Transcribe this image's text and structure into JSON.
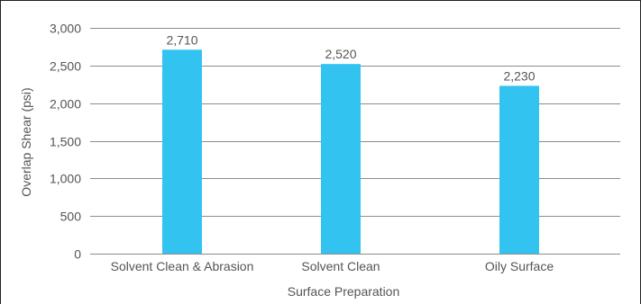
{
  "chart_data": {
    "type": "bar",
    "categories": [
      "Solvent Clean & Abrasion",
      "Solvent Clean",
      "Oily Surface"
    ],
    "values": [
      2710,
      2520,
      2230
    ],
    "value_labels": [
      "2,710",
      "2,520",
      "2,230"
    ],
    "ylabel": "Overlap Shear (psi)",
    "xlabel": "Surface Preparation",
    "ylim": [
      0,
      3000
    ],
    "yticks": [
      0,
      500,
      1000,
      1500,
      2000,
      2500,
      3000
    ],
    "ytick_labels": [
      "0",
      "500",
      "1,000",
      "1,500",
      "2,000",
      "2,500",
      "3,000"
    ],
    "grid": true,
    "legend": "none",
    "colors": {
      "bar": "#33C3F0",
      "grid": "#8C8C8C",
      "text": "#555555",
      "frame": "#222222"
    }
  }
}
